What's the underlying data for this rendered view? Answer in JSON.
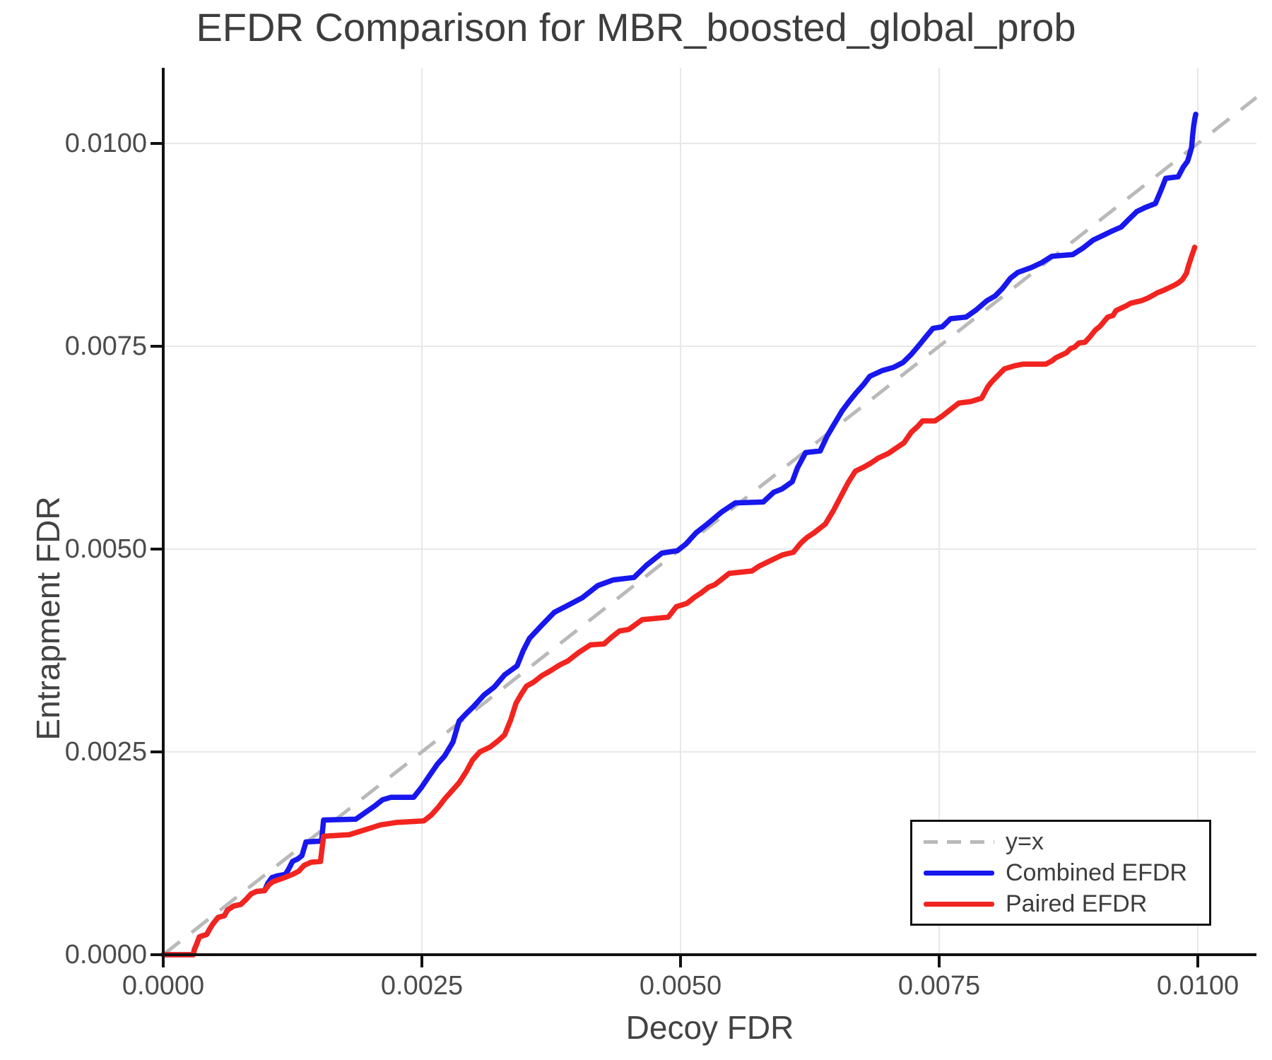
{
  "chart_data": {
    "type": "line",
    "title": "EFDR Comparison for MBR_boosted_global_prob",
    "xlabel": "Decoy FDR",
    "ylabel": "Entrapment FDR",
    "xlim": [
      0,
      0.0106
    ],
    "ylim": [
      0,
      0.0109
    ],
    "grid": true,
    "x_tick_labels": [
      "0.0000",
      "0.0025",
      "0.0050",
      "0.0075",
      "0.0100"
    ],
    "y_tick_labels": [
      "0.0000",
      "0.0025",
      "0.0050",
      "0.0075",
      "0.0100"
    ],
    "tick_values_1e4": [
      0,
      25,
      50,
      75,
      100
    ],
    "legend": [
      {
        "label": "y=x",
        "color": "#b9b9b9",
        "style": "dashed"
      },
      {
        "label": "Combined EFDR",
        "color": "#1717ee",
        "style": "solid"
      },
      {
        "label": "Paired EFDR",
        "color": "#f2241f",
        "style": "solid"
      }
    ],
    "reference_line": {
      "name": "y=x",
      "from_1e4": [
        0,
        0
      ],
      "to_1e4": [
        106,
        106
      ]
    },
    "series": [
      {
        "name": "Combined EFDR",
        "color": "#1717ee",
        "units": "1e-4",
        "points": [
          [
            0,
            0
          ],
          [
            2.9,
            0
          ],
          [
            3.0,
            0.6
          ],
          [
            3.2,
            1.2
          ],
          [
            3.5,
            2.2
          ],
          [
            4.2,
            2.5
          ],
          [
            4.5,
            3.2
          ],
          [
            4.8,
            3.8
          ],
          [
            5.3,
            4.6
          ],
          [
            5.9,
            4.8
          ],
          [
            6.2,
            5.5
          ],
          [
            6.8,
            6.0
          ],
          [
            7.5,
            6.2
          ],
          [
            8.0,
            6.8
          ],
          [
            8.5,
            7.5
          ],
          [
            9.0,
            7.8
          ],
          [
            9.8,
            7.9
          ],
          [
            10.1,
            8.8
          ],
          [
            10.5,
            9.5
          ],
          [
            11.0,
            9.7
          ],
          [
            11.8,
            9.9
          ],
          [
            12.1,
            10.5
          ],
          [
            12.5,
            11.5
          ],
          [
            13.0,
            11.8
          ],
          [
            13.4,
            12.2
          ],
          [
            13.8,
            13.9
          ],
          [
            15.3,
            14.0
          ],
          [
            15.5,
            16.6
          ],
          [
            18.6,
            16.7
          ],
          [
            19.5,
            17.5
          ],
          [
            20.4,
            18.3
          ],
          [
            21.2,
            19.1
          ],
          [
            22.0,
            19.4
          ],
          [
            24.2,
            19.4
          ],
          [
            25.0,
            20.7
          ],
          [
            25.8,
            22.2
          ],
          [
            26.5,
            23.5
          ],
          [
            27.2,
            24.5
          ],
          [
            28.0,
            26.2
          ],
          [
            28.6,
            28.8
          ],
          [
            29.2,
            29.6
          ],
          [
            30.0,
            30.6
          ],
          [
            31.0,
            32.0
          ],
          [
            32.0,
            33.0
          ],
          [
            33.0,
            34.5
          ],
          [
            34.2,
            35.6
          ],
          [
            34.8,
            37.5
          ],
          [
            35.4,
            39.0
          ],
          [
            36.5,
            40.5
          ],
          [
            37.8,
            42.2
          ],
          [
            39.0,
            43.0
          ],
          [
            40.5,
            44.0
          ],
          [
            42.0,
            45.5
          ],
          [
            43.5,
            46.2
          ],
          [
            45.5,
            46.5
          ],
          [
            46.7,
            48.0
          ],
          [
            48.2,
            49.5
          ],
          [
            49.7,
            49.8
          ],
          [
            50.5,
            50.6
          ],
          [
            51.5,
            52.0
          ],
          [
            52.5,
            53.0
          ],
          [
            54.0,
            54.6
          ],
          [
            55.3,
            55.7
          ],
          [
            58.0,
            55.8
          ],
          [
            59.0,
            57.0
          ],
          [
            59.8,
            57.4
          ],
          [
            60.8,
            58.3
          ],
          [
            61.3,
            60.0
          ],
          [
            62.1,
            61.9
          ],
          [
            63.5,
            62.1
          ],
          [
            64.2,
            64.0
          ],
          [
            64.9,
            65.5
          ],
          [
            65.6,
            67.0
          ],
          [
            66.3,
            68.2
          ],
          [
            67.0,
            69.3
          ],
          [
            67.7,
            70.3
          ],
          [
            68.3,
            71.3
          ],
          [
            69.5,
            72.0
          ],
          [
            70.6,
            72.4
          ],
          [
            71.5,
            73.0
          ],
          [
            72.3,
            74.0
          ],
          [
            73.1,
            75.2
          ],
          [
            73.8,
            76.3
          ],
          [
            74.4,
            77.2
          ],
          [
            75.3,
            77.4
          ],
          [
            76.1,
            78.4
          ],
          [
            77.6,
            78.6
          ],
          [
            78.6,
            79.5
          ],
          [
            79.6,
            80.6
          ],
          [
            80.4,
            81.2
          ],
          [
            81.1,
            82.1
          ],
          [
            81.9,
            83.4
          ],
          [
            82.6,
            84.1
          ],
          [
            83.9,
            84.7
          ],
          [
            84.9,
            85.3
          ],
          [
            85.9,
            86.1
          ],
          [
            87.9,
            86.3
          ],
          [
            88.9,
            87.1
          ],
          [
            89.9,
            88.1
          ],
          [
            90.9,
            88.7
          ],
          [
            91.7,
            89.2
          ],
          [
            92.6,
            89.7
          ],
          [
            93.3,
            90.6
          ],
          [
            94.1,
            91.6
          ],
          [
            94.9,
            92.1
          ],
          [
            95.9,
            92.6
          ],
          [
            96.4,
            94.1
          ],
          [
            96.9,
            95.7
          ],
          [
            98.1,
            95.9
          ],
          [
            98.6,
            97.1
          ],
          [
            99.0,
            97.8
          ],
          [
            99.2,
            98.6
          ],
          [
            99.4,
            99.5
          ],
          [
            99.5,
            101.0
          ],
          [
            99.6,
            102.1
          ],
          [
            99.7,
            103.0
          ],
          [
            99.8,
            103.6
          ]
        ]
      },
      {
        "name": "Paired EFDR",
        "color": "#f2241f",
        "units": "1e-4",
        "points": [
          [
            0,
            0
          ],
          [
            2.9,
            0
          ],
          [
            3.0,
            0.6
          ],
          [
            3.2,
            1.2
          ],
          [
            3.5,
            2.2
          ],
          [
            4.2,
            2.5
          ],
          [
            4.5,
            3.2
          ],
          [
            4.8,
            3.8
          ],
          [
            5.3,
            4.6
          ],
          [
            5.9,
            4.8
          ],
          [
            6.2,
            5.5
          ],
          [
            6.8,
            6.0
          ],
          [
            7.5,
            6.2
          ],
          [
            8.0,
            6.8
          ],
          [
            8.5,
            7.5
          ],
          [
            9.0,
            7.8
          ],
          [
            9.8,
            7.9
          ],
          [
            10.2,
            8.6
          ],
          [
            10.6,
            9.0
          ],
          [
            11.5,
            9.4
          ],
          [
            12.5,
            9.9
          ],
          [
            13.1,
            10.3
          ],
          [
            13.6,
            11.0
          ],
          [
            14.3,
            11.4
          ],
          [
            15.2,
            11.5
          ],
          [
            15.5,
            14.6
          ],
          [
            18.0,
            14.8
          ],
          [
            19.0,
            15.2
          ],
          [
            20.0,
            15.6
          ],
          [
            21.0,
            16.0
          ],
          [
            22.5,
            16.3
          ],
          [
            25.2,
            16.5
          ],
          [
            25.9,
            17.2
          ],
          [
            26.6,
            18.2
          ],
          [
            27.2,
            19.2
          ],
          [
            27.9,
            20.2
          ],
          [
            28.6,
            21.2
          ],
          [
            29.3,
            22.6
          ],
          [
            29.9,
            24.0
          ],
          [
            30.6,
            25.0
          ],
          [
            31.6,
            25.6
          ],
          [
            32.3,
            26.3
          ],
          [
            33.0,
            27.1
          ],
          [
            33.6,
            29.0
          ],
          [
            34.1,
            31.0
          ],
          [
            34.6,
            32.1
          ],
          [
            35.1,
            33.1
          ],
          [
            35.8,
            33.6
          ],
          [
            36.6,
            34.4
          ],
          [
            37.3,
            34.9
          ],
          [
            38.3,
            35.7
          ],
          [
            39.1,
            36.2
          ],
          [
            40.1,
            37.2
          ],
          [
            41.3,
            38.2
          ],
          [
            42.6,
            38.3
          ],
          [
            43.3,
            39.1
          ],
          [
            44.1,
            39.9
          ],
          [
            45.0,
            40.1
          ],
          [
            46.3,
            41.3
          ],
          [
            48.8,
            41.6
          ],
          [
            49.6,
            42.9
          ],
          [
            50.6,
            43.3
          ],
          [
            51.4,
            44.1
          ],
          [
            52.0,
            44.6
          ],
          [
            52.7,
            45.3
          ],
          [
            53.3,
            45.6
          ],
          [
            54.0,
            46.3
          ],
          [
            54.7,
            47.0
          ],
          [
            56.9,
            47.3
          ],
          [
            57.6,
            47.9
          ],
          [
            58.9,
            48.7
          ],
          [
            59.9,
            49.3
          ],
          [
            60.9,
            49.6
          ],
          [
            61.6,
            50.7
          ],
          [
            62.2,
            51.4
          ],
          [
            62.9,
            52.0
          ],
          [
            64.0,
            53.1
          ],
          [
            64.8,
            54.8
          ],
          [
            65.5,
            56.5
          ],
          [
            66.2,
            58.2
          ],
          [
            66.9,
            59.6
          ],
          [
            67.7,
            60.1
          ],
          [
            68.4,
            60.6
          ],
          [
            69.1,
            61.2
          ],
          [
            70.1,
            61.8
          ],
          [
            70.9,
            62.5
          ],
          [
            71.6,
            63.1
          ],
          [
            72.3,
            64.4
          ],
          [
            72.9,
            65.1
          ],
          [
            73.4,
            65.8
          ],
          [
            74.6,
            65.8
          ],
          [
            75.3,
            66.4
          ],
          [
            76.1,
            67.2
          ],
          [
            76.9,
            68.0
          ],
          [
            78.1,
            68.2
          ],
          [
            79.1,
            68.6
          ],
          [
            79.7,
            70.0
          ],
          [
            80.0,
            70.5
          ],
          [
            80.6,
            71.3
          ],
          [
            81.3,
            72.2
          ],
          [
            82.3,
            72.6
          ],
          [
            83.1,
            72.8
          ],
          [
            85.3,
            72.8
          ],
          [
            85.9,
            73.2
          ],
          [
            86.3,
            73.6
          ],
          [
            87.3,
            74.2
          ],
          [
            87.7,
            74.7
          ],
          [
            88.1,
            74.9
          ],
          [
            88.5,
            75.4
          ],
          [
            89.1,
            75.5
          ],
          [
            89.6,
            76.2
          ],
          [
            90.1,
            77.0
          ],
          [
            90.5,
            77.4
          ],
          [
            90.9,
            78.0
          ],
          [
            91.3,
            78.6
          ],
          [
            91.8,
            78.8
          ],
          [
            92.1,
            79.4
          ],
          [
            92.6,
            79.7
          ],
          [
            93.1,
            80.0
          ],
          [
            93.5,
            80.3
          ],
          [
            94.5,
            80.6
          ],
          [
            95.1,
            80.9
          ],
          [
            95.7,
            81.3
          ],
          [
            96.1,
            81.6
          ],
          [
            96.7,
            81.9
          ],
          [
            97.7,
            82.5
          ],
          [
            98.1,
            82.8
          ],
          [
            98.5,
            83.2
          ],
          [
            98.7,
            83.6
          ],
          [
            98.9,
            84.0
          ],
          [
            99.1,
            84.9
          ],
          [
            99.4,
            86.1
          ],
          [
            99.6,
            86.8
          ],
          [
            99.7,
            87.2
          ]
        ]
      }
    ],
    "colors": {
      "grid": "#e8e8e8",
      "spine": "#111111",
      "dashed_reference": "#b9b9b9",
      "tick_text": "#4b4b4b",
      "title_text": "#3d3d3d"
    }
  }
}
